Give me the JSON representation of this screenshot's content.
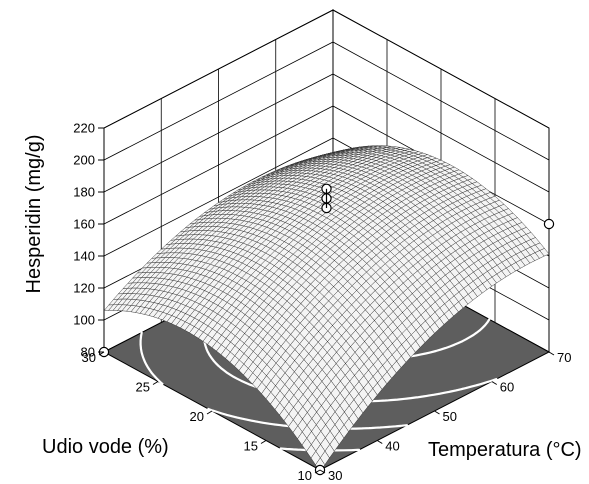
{
  "chart_data": {
    "type": "surface",
    "title": "",
    "zlabel": "Hesperidin (mg/g)",
    "xlabel": "Temperatura (°C)",
    "ylabel": "Udio vode (%)",
    "x_axis": {
      "min": 30,
      "max": 70,
      "ticks": [
        "30",
        "40",
        "50",
        "60",
        "70"
      ]
    },
    "y_axis": {
      "min": 10,
      "max": 30,
      "ticks": [
        "10",
        "15",
        "20",
        "25",
        "30"
      ]
    },
    "z_axis": {
      "min": 80,
      "max": 220,
      "ticks": [
        "80",
        "100",
        "120",
        "140",
        "160",
        "180",
        "200",
        "220"
      ]
    },
    "surface_grid": {
      "temperatura": [
        30,
        40,
        50,
        60,
        70
      ],
      "udio_vode": [
        10,
        15,
        20,
        25,
        30
      ],
      "hesperidin": [
        [
          80,
          108,
          128,
          139,
          141
        ],
        [
          106,
          133,
          151,
          160,
          160
        ],
        [
          119,
          144,
          160,
          166,
          163
        ],
        [
          119,
          142,
          155,
          159,
          153
        ],
        [
          106,
          126,
          137,
          138,
          130
        ]
      ]
    },
    "design_points": [
      {
        "temperatura": 30,
        "udio_vode": 30,
        "hesperidin": 80
      },
      {
        "temperatura": 30,
        "udio_vode": 10,
        "hesperidin": 80
      },
      {
        "temperatura": 50,
        "udio_vode": 20,
        "hesperidin": 182
      },
      {
        "temperatura": 50,
        "udio_vode": 20,
        "hesperidin": 176
      },
      {
        "temperatura": 50,
        "udio_vode": 20,
        "hesperidin": 170
      },
      {
        "temperatura": 70,
        "udio_vode": 10,
        "hesperidin": 160
      }
    ],
    "contour_on_floor": true,
    "floor_color": "#5e5e5e",
    "contour_color": "#ffffff",
    "mesh_color": "#000000",
    "grid": true
  }
}
